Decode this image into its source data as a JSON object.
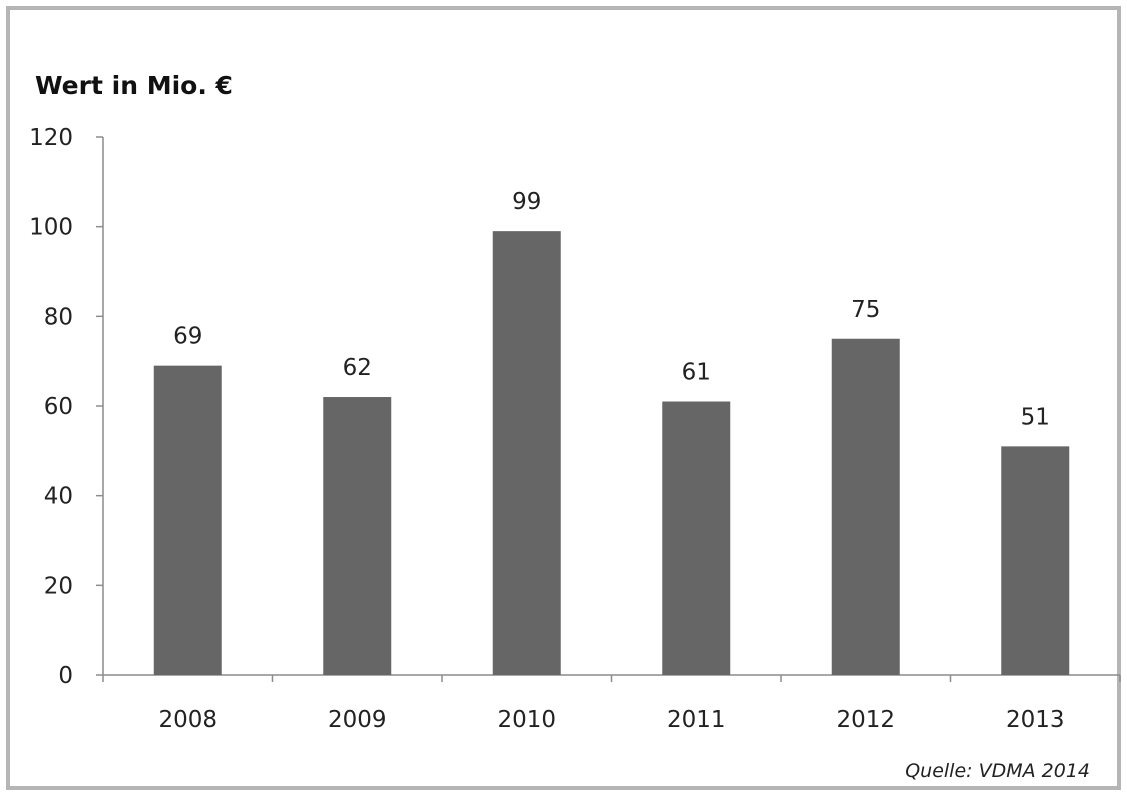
{
  "chart_data": {
    "type": "bar",
    "ylabel": "Wert in Mio. €",
    "categories": [
      "2008",
      "2009",
      "2010",
      "2011",
      "2012",
      "2013"
    ],
    "values": [
      69,
      62,
      99,
      61,
      75,
      51
    ],
    "data_labels": [
      "69",
      "62",
      "99",
      "61",
      "75",
      "51"
    ],
    "y_ticks": [
      "0",
      "20",
      "40",
      "60",
      "80",
      "100",
      "120"
    ],
    "ylim": [
      0,
      120
    ],
    "grid": false,
    "bar_color": "#666666",
    "source": "Quelle: VDMA 2014"
  }
}
